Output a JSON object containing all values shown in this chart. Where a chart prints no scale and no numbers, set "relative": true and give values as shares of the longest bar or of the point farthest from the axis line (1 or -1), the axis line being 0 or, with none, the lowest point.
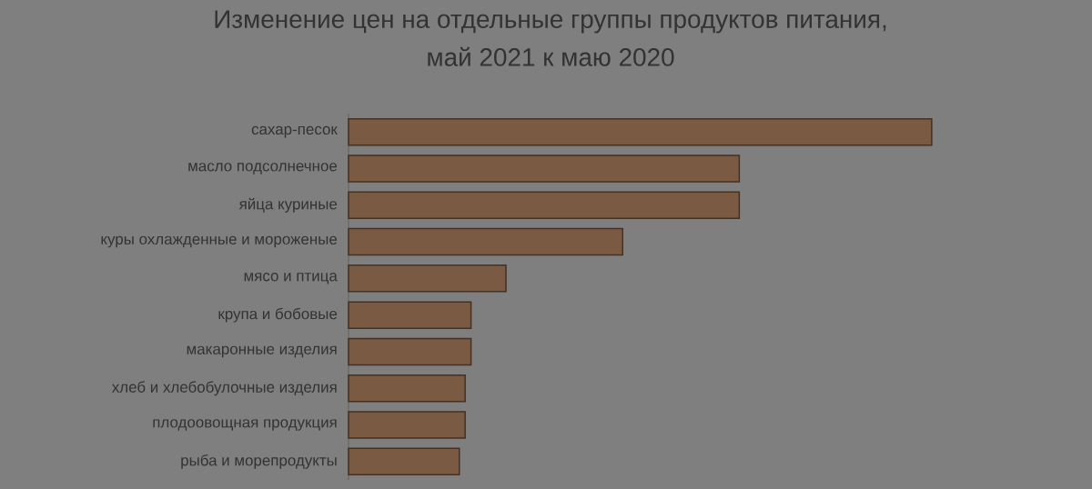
{
  "chart_data": {
    "type": "bar",
    "orientation": "horizontal",
    "relative": true,
    "title": "Изменение цен на отдельные группы продуктов питания, май 2021 к маю 2020",
    "categories": [
      "сахар-песок",
      "масло подсолнечное",
      "яйца куриные",
      "куры охлажденные и мороженые",
      "мясо и птица",
      "крупа и бобовые",
      "макаронные изделия",
      "хлеб и хлебобулочные изделия",
      "плодоовощная продукция",
      "рыба и морепродукты"
    ],
    "values": [
      1,
      0.67,
      0.67,
      0.47,
      0.27,
      0.21,
      0.21,
      0.2,
      0.2,
      0.19
    ],
    "color": "#7b5a43"
  }
}
